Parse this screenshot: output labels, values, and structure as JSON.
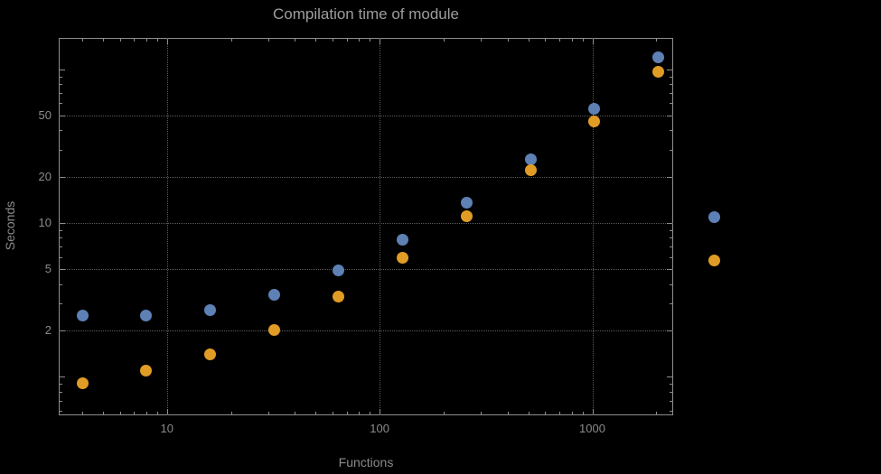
{
  "title": "Compilation time of module",
  "colors": {
    "background": "#000000",
    "frame": "#8e8e8e",
    "grid": "#5c5c5c",
    "tick_text": "#8b8b8b",
    "title_text": "#9d9d9d",
    "series_blue": "#5E81B5",
    "series_orange": "#E09C24"
  },
  "chart_data": {
    "type": "scatter",
    "scale": "log-log",
    "title": "Compilation time of module",
    "xlabel": "Functions",
    "ylabel": "Seconds",
    "x": [
      4,
      8,
      16,
      32,
      64,
      128,
      256,
      512,
      1024,
      2048
    ],
    "series": [
      {
        "name": "series-blue",
        "color": "#5E81B5",
        "values": [
          2.5,
          2.5,
          2.7,
          3.4,
          4.9,
          7.8,
          13.5,
          26,
          55,
          120
        ]
      },
      {
        "name": "series-orange",
        "color": "#E09C24",
        "values": [
          0.9,
          1.1,
          1.4,
          2.0,
          3.3,
          5.9,
          11,
          22,
          46,
          96
        ]
      }
    ],
    "x_ticks": [
      10,
      100,
      1000
    ],
    "x_tick_labels": [
      "10",
      "100",
      "1000"
    ],
    "y_ticks": [
      2,
      5,
      10,
      20,
      50
    ],
    "y_tick_labels": [
      "2",
      "5",
      "10",
      "20",
      "50"
    ],
    "xlim": [
      3.1,
      2400
    ],
    "ylim": [
      0.56,
      160
    ],
    "grid": "dotted-major",
    "legend": {
      "markers": [
        {
          "name": "blue-marker",
          "color": "#5E81B5",
          "label": ""
        },
        {
          "name": "orange-marker",
          "color": "#E09C24",
          "label": ""
        }
      ]
    }
  }
}
